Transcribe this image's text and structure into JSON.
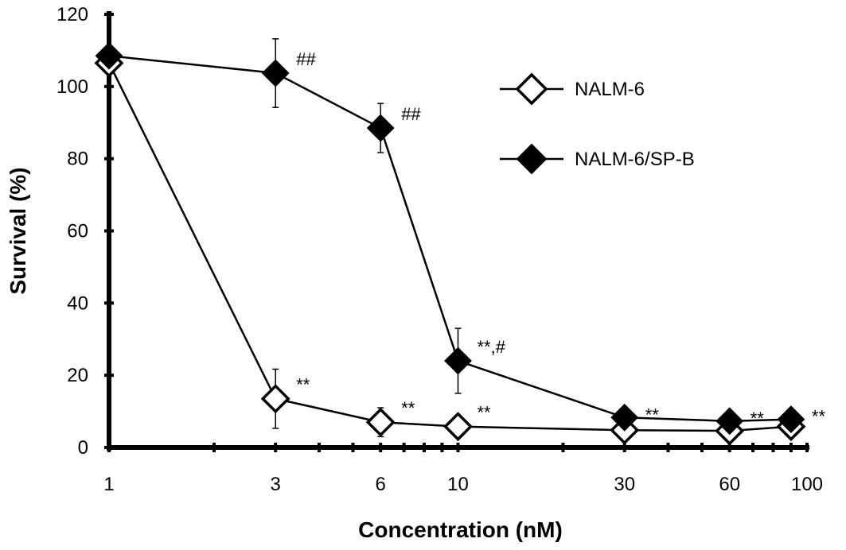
{
  "chart_data": {
    "type": "line",
    "title": "",
    "xlabel": "Concentration (nM)",
    "ylabel": "Survival (%)",
    "x_scale": "log",
    "xlim": [
      1,
      100
    ],
    "ylim": [
      0,
      120
    ],
    "x_ticks": [
      "1",
      "3",
      "6",
      "10",
      "30",
      "60",
      "100"
    ],
    "y_ticks": [
      "0",
      "20",
      "40",
      "60",
      "80",
      "100",
      "120"
    ],
    "grid": false,
    "legend_position": "top-right",
    "series": [
      {
        "name": "NALM-6",
        "marker": "open-diamond",
        "x": [
          1,
          3,
          6,
          10,
          30,
          60,
          90
        ],
        "y": [
          106.5,
          13.5,
          7,
          5.8,
          4.8,
          4.6,
          5.8
        ],
        "err": [
          0,
          8.2,
          4,
          0,
          0,
          0,
          0
        ],
        "annotations": [
          "",
          "**",
          "**",
          "**",
          "",
          "",
          ""
        ]
      },
      {
        "name": "NALM-6/SP-B",
        "marker": "filled-diamond",
        "x": [
          1,
          3,
          6,
          10,
          30,
          60,
          90
        ],
        "y": [
          108.5,
          103.7,
          88.5,
          24,
          8.3,
          7.3,
          7.8
        ],
        "err": [
          0,
          9.5,
          6.8,
          9,
          0,
          0,
          0
        ],
        "annotations": [
          "",
          "##",
          "##",
          "**,#",
          "**",
          "**",
          "**"
        ]
      }
    ]
  }
}
